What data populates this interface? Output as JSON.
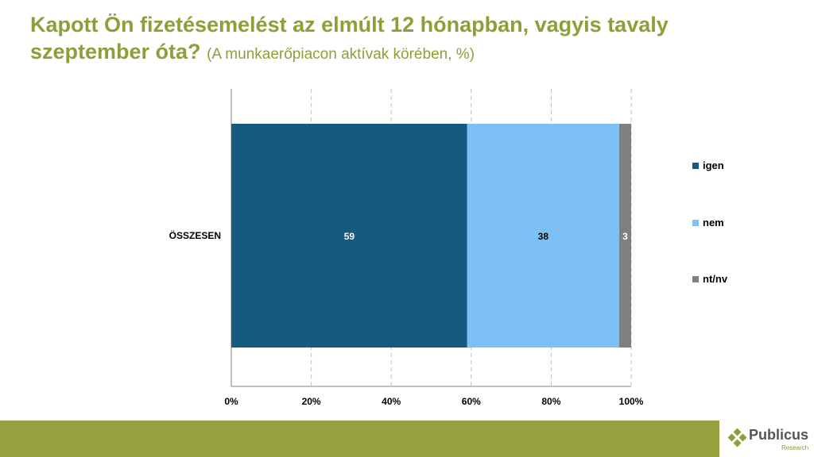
{
  "title": "Kapott Ön fizetésemelést az elmúlt 12 hónapban, vagyis tavaly szeptember óta?",
  "subtitle": "(A munkaerőpiacon aktívak körében, %)",
  "logo": {
    "name": "Publicus",
    "sub": "Research"
  },
  "colors": {
    "accent": "#8aa13a",
    "footer": "#96a03f"
  },
  "chart_data": {
    "type": "bar",
    "orientation": "horizontal",
    "stacked": true,
    "categories": [
      "ÖSSZESEN"
    ],
    "series": [
      {
        "name": "igen",
        "values": [
          59
        ],
        "color": "#155b7f",
        "label_color": "#ffffff"
      },
      {
        "name": "nem",
        "values": [
          38
        ],
        "color": "#7dc1f4",
        "label_color": "#000000"
      },
      {
        "name": "nt/nv",
        "values": [
          3
        ],
        "color": "#7f7f7f",
        "label_color": "#ffffff"
      }
    ],
    "xlim": [
      0,
      100
    ],
    "xticks": [
      "0%",
      "20%",
      "40%",
      "60%",
      "80%",
      "100%"
    ],
    "grid": "vertical dashed",
    "legend": "right"
  }
}
